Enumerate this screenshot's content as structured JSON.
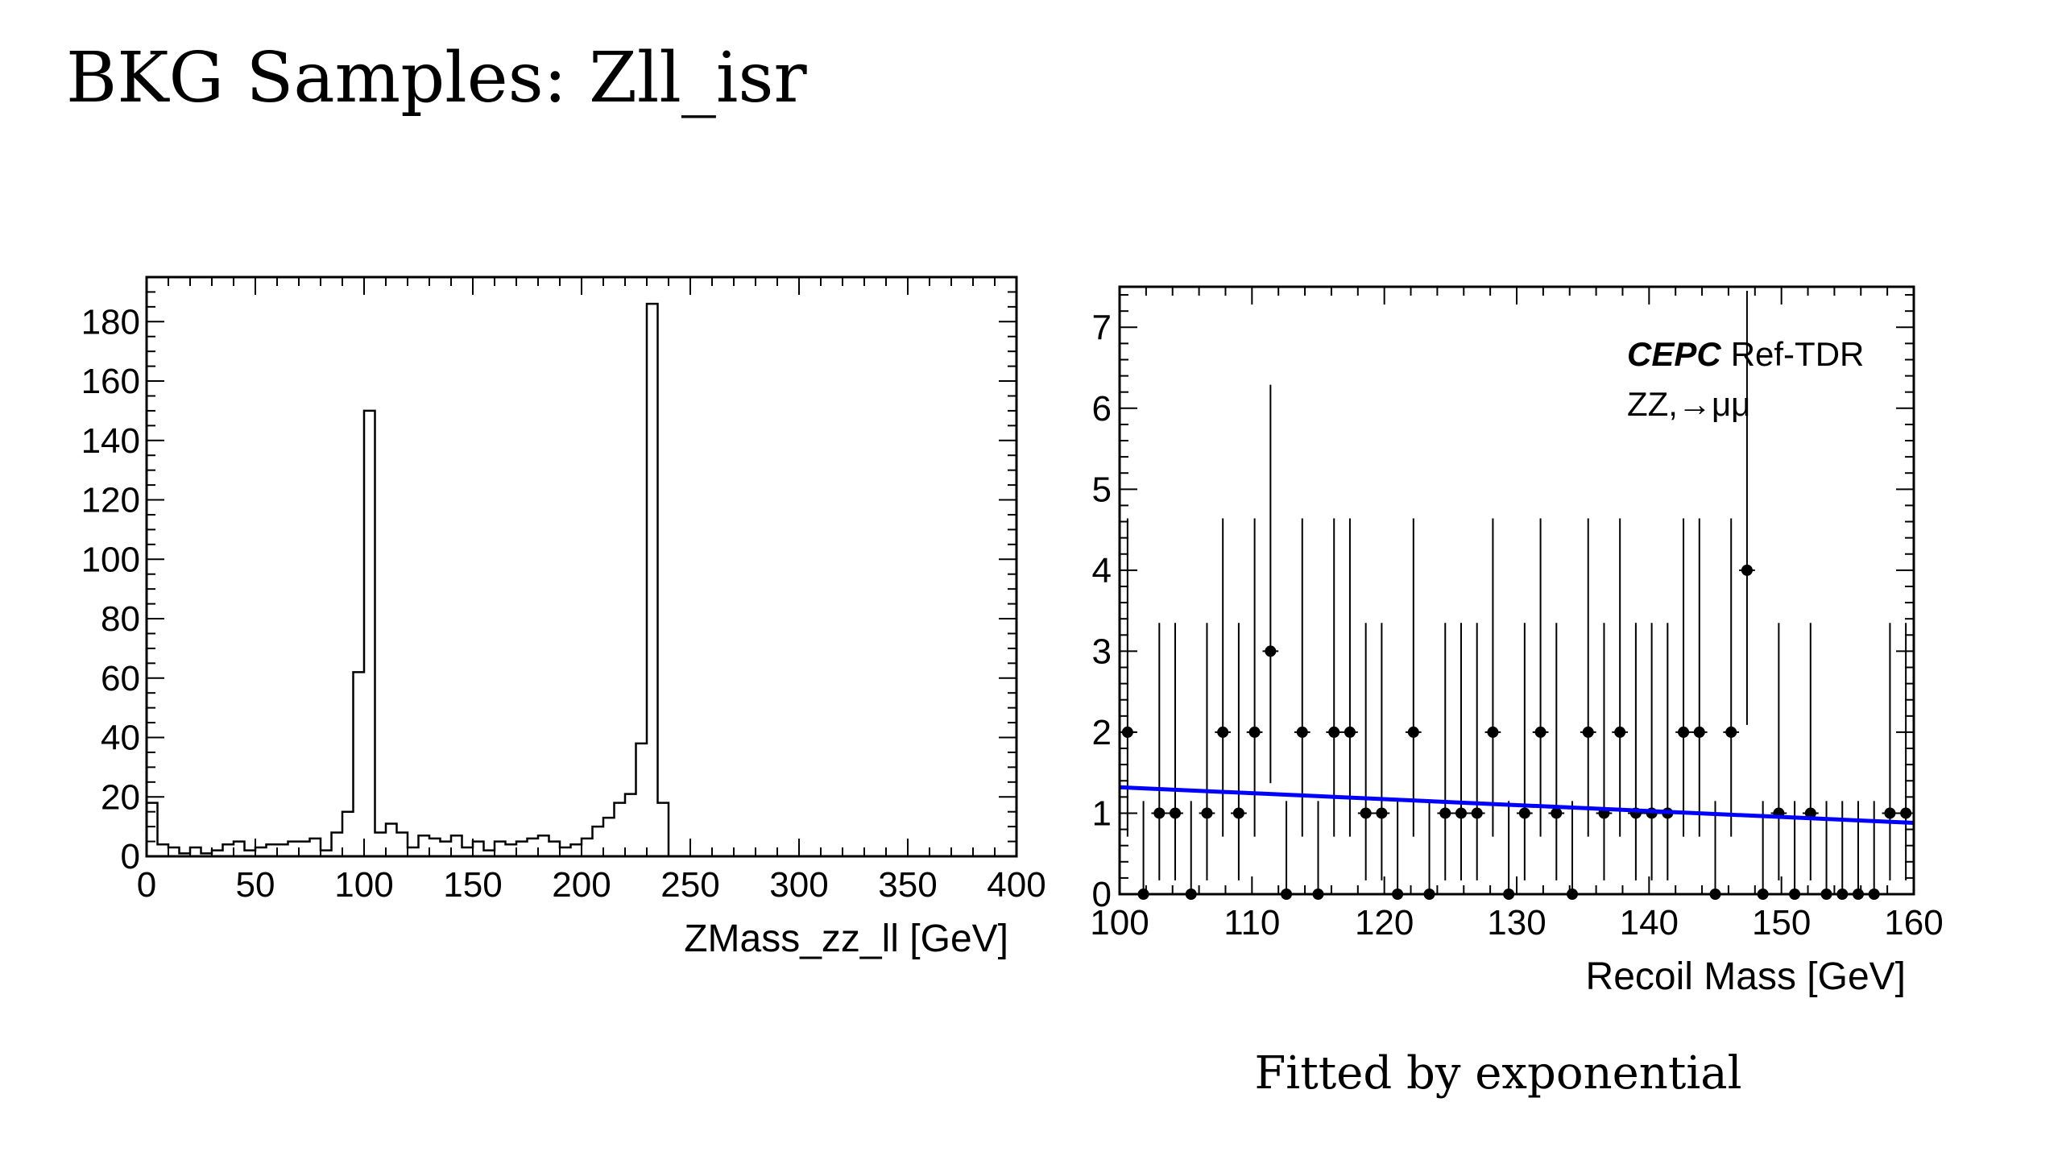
{
  "slide": {
    "title": "BKG Samples: Zll_isr",
    "caption": "Fitted by exponential"
  },
  "chart_data": [
    {
      "type": "histogram",
      "xlabel": "ZMass_zz_ll [GeV]",
      "ylabel": "",
      "xlim": [
        0,
        400
      ],
      "ylim": [
        0,
        195
      ],
      "xticks": [
        0,
        50,
        100,
        150,
        200,
        250,
        300,
        350,
        400
      ],
      "yticks": [
        0,
        20,
        40,
        60,
        80,
        100,
        120,
        140,
        160,
        180
      ],
      "bin_width": 5,
      "bin_start": 0,
      "counts": [
        18,
        4,
        3,
        1,
        3,
        1,
        2,
        4,
        5,
        2,
        3,
        4,
        4,
        5,
        5,
        6,
        2,
        8,
        15,
        62,
        150,
        8,
        11,
        8,
        3,
        7,
        6,
        5,
        7,
        3,
        5,
        2,
        5,
        4,
        5,
        6,
        7,
        5,
        3,
        4,
        6,
        10,
        13,
        18,
        21,
        38,
        186,
        18,
        0
      ],
      "color": "#000000"
    },
    {
      "type": "scatter",
      "xlabel": "Recoil Mass [GeV]",
      "ylabel": "",
      "xlim": [
        100,
        160
      ],
      "ylim": [
        0,
        7.5
      ],
      "xticks": [
        100,
        110,
        120,
        130,
        140,
        150,
        160
      ],
      "yticks": [
        0,
        1,
        2,
        3,
        4,
        5,
        6,
        7
      ],
      "legend": {
        "experiment": "CEPC",
        "label": "Ref-TDR",
        "process": "ZZ,→μμ",
        "position": "top-right"
      },
      "series": [
        {
          "x": [
            100.6,
            101.8,
            103.0,
            104.2,
            105.4,
            106.6,
            107.8,
            109.0,
            110.2,
            111.4,
            112.6,
            113.8,
            115.0,
            116.2,
            117.4,
            118.6,
            119.8,
            121.0,
            122.2,
            123.4,
            124.6,
            125.8,
            127.0,
            128.2,
            129.4,
            130.6,
            131.8,
            133.0,
            134.2,
            135.4,
            136.6,
            137.8,
            139.0,
            140.2,
            141.4,
            142.6,
            143.8,
            145.0,
            146.2,
            147.4,
            148.6,
            149.8,
            151.0,
            152.2,
            153.4,
            154.6,
            155.8,
            157.0,
            158.2,
            159.4
          ],
          "y": [
            2,
            0,
            1,
            1,
            0,
            1,
            2,
            1,
            2,
            3,
            0,
            2,
            0,
            2,
            2,
            1,
            1,
            0,
            2,
            0,
            1,
            1,
            1,
            2,
            0,
            1,
            2,
            1,
            0,
            2,
            1,
            2,
            1,
            1,
            1,
            2,
            2,
            0,
            2,
            4,
            0,
            1,
            0,
            1,
            0,
            0,
            0,
            0,
            1,
            1
          ],
          "yerr_up": {
            "0": 1.15,
            "1": 2.35,
            "2": 2.64,
            "3": 3.29,
            "4": 3.93
          },
          "yerr_down": {
            "0": 0,
            "1": 0.83,
            "2": 1.29,
            "3": 1.63,
            "4": 1.91
          },
          "color": "#000000"
        },
        {
          "type": "line",
          "x": [
            100,
            160
          ],
          "y": [
            1.32,
            0.88
          ],
          "color": "#0000ff"
        }
      ]
    }
  ]
}
